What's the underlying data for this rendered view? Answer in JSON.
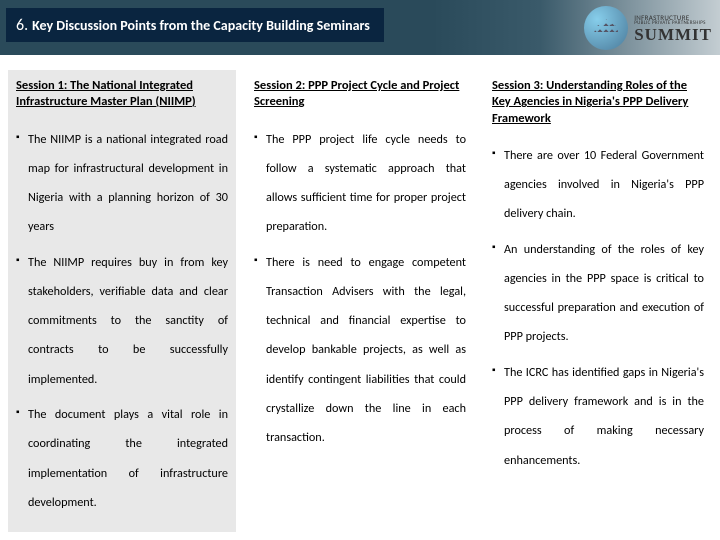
{
  "header": {
    "number": "6.",
    "title": "Key Discussion Points from the Capacity Building Seminars"
  },
  "logo": {
    "top_line": "INFRASTRUCTURE",
    "sub_line": "PUBLIC PRIVATE PARTNERSHIPS",
    "main": "SUMMIT"
  },
  "columns": [
    {
      "bg": "#e8e8e8",
      "session_title": "Session 1: The National Integrated Infrastructure Master Plan (NIIMP)",
      "bullets": [
        "The NIIMP is a national integrated road map for infrastructural development in Nigeria with a planning horizon of 30 years",
        "The NIIMP requires buy in from key stakeholders, verifiable data and clear commitments to the sanctity of contracts to be successfully implemented.",
        "The document plays a vital role in coordinating the integrated implementation of infrastructure development."
      ]
    },
    {
      "bg": "#ffffff",
      "session_title": "Session 2: PPP Project Cycle and Project Screening",
      "bullets": [
        "The PPP project life cycle needs to follow a systematic approach that allows sufficient time for proper project preparation.",
        "There is need to engage competent Transaction Advisers with the legal, technical and financial expertise to develop bankable projects, as well as identify contingent liabilities that could crystallize down the line in each transaction."
      ]
    },
    {
      "bg": "#ffffff",
      "session_title": "Session 3: Understanding Roles of the Key Agencies in Nigeria's PPP Delivery Framework",
      "bullets": [
        "There are over 10 Federal Government agencies involved in Nigeria's PPP delivery chain.",
        "An understanding of the roles of key agencies in the PPP space is critical to successful preparation and execution of PPP projects.",
        "The ICRC has identified gaps in Nigeria's PPP delivery framework and is in the process of making necessary enhancements."
      ]
    }
  ]
}
